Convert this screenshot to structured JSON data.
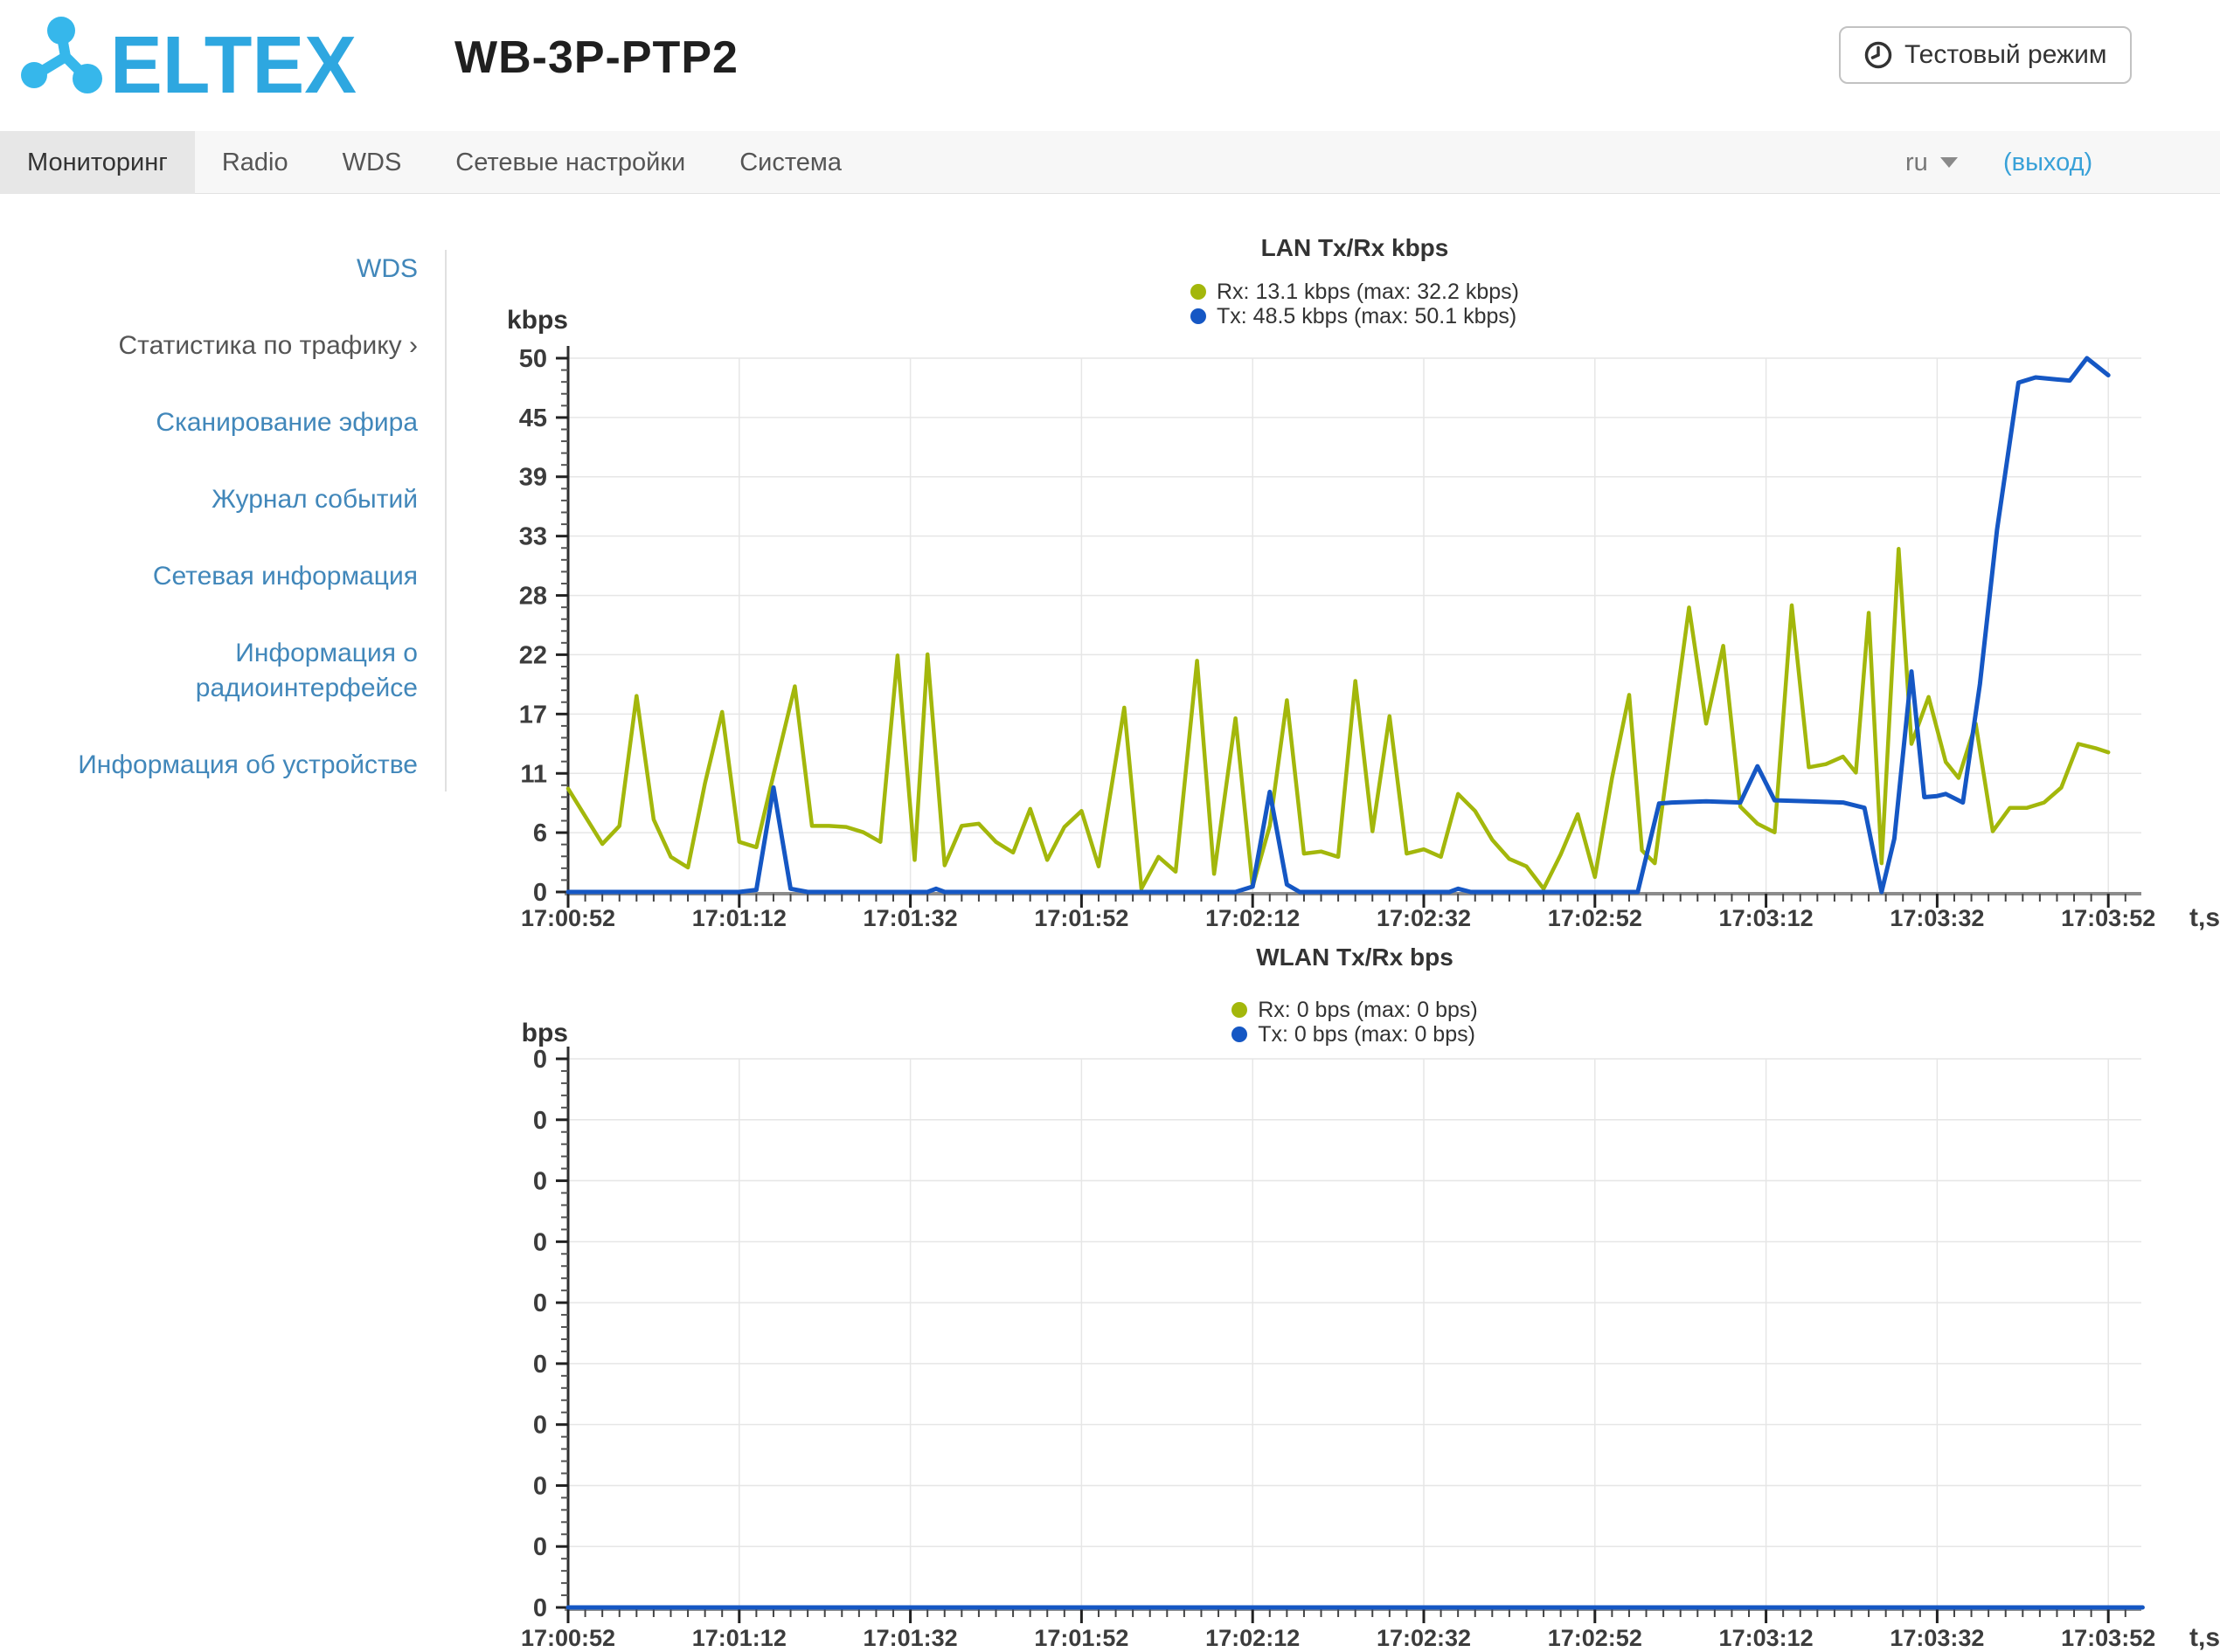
{
  "header": {
    "logo_text": "ELTEX",
    "title": "WB-3P-PTP2",
    "test_mode_label": "Тестовый режим"
  },
  "navbar": {
    "tabs": [
      {
        "label": "Мониторинг",
        "active": true
      },
      {
        "label": "Radio",
        "active": false
      },
      {
        "label": "WDS",
        "active": false
      },
      {
        "label": "Сетевые настройки",
        "active": false
      },
      {
        "label": "Система",
        "active": false
      }
    ],
    "language": "ru",
    "logout_label": "(выход)"
  },
  "sidebar": {
    "items": [
      {
        "label": "WDS",
        "active": false
      },
      {
        "label": "Статистика по трафику",
        "active": true,
        "chevron": "›"
      },
      {
        "label": "Сканирование эфира",
        "active": false
      },
      {
        "label": "Журнал событий",
        "active": false
      },
      {
        "label": "Сетевая информация",
        "active": false
      },
      {
        "label": "Информация о радиоинтерфейсе",
        "active": false
      },
      {
        "label": "Информация об устройстве",
        "active": false
      }
    ]
  },
  "colors": {
    "brand_blue": "#31b0e6",
    "link_blue": "#4187ba",
    "logout_blue": "#38a1d8",
    "rx_green": "#a3b70b",
    "tx_blue": "#1557c4",
    "grid": "#e6e6e6"
  },
  "chart_data": [
    {
      "type": "line",
      "title": "LAN Tx/Rx kbps",
      "ylabel": "kbps",
      "xlabel": "t,s",
      "x_tick_labels": [
        "17:00:52",
        "17:01:12",
        "17:01:32",
        "17:01:52",
        "17:02:12",
        "17:02:32",
        "17:02:52",
        "17:03:12",
        "17:03:32",
        "17:03:52"
      ],
      "x_tick_seconds": [
        0,
        20,
        40,
        60,
        80,
        100,
        120,
        140,
        160,
        180
      ],
      "x_minor_step_seconds": 2,
      "y_max": 50.1,
      "y_ticks": [
        {
          "v": 0,
          "label": "0"
        },
        {
          "v": 5.57,
          "label": "6"
        },
        {
          "v": 11.13,
          "label": "11"
        },
        {
          "v": 16.7,
          "label": "17"
        },
        {
          "v": 22.27,
          "label": "22"
        },
        {
          "v": 27.83,
          "label": "28"
        },
        {
          "v": 33.4,
          "label": "33"
        },
        {
          "v": 38.97,
          "label": "39"
        },
        {
          "v": 44.53,
          "label": "45"
        },
        {
          "v": 50.1,
          "label": "50"
        }
      ],
      "grid": true,
      "legend_position": "top-center",
      "legend": [
        {
          "series": "Rx",
          "label": "Rx: 13.1 kbps (max: 32.2 kbps)",
          "color": "#a3b70b"
        },
        {
          "series": "Tx",
          "label": "Tx: 48.5 kbps (max: 50.1 kbps)",
          "color": "#1557c4"
        }
      ],
      "series": [
        {
          "name": "Rx",
          "color": "#a3b70b",
          "points": [
            [
              0,
              9.7
            ],
            [
              2,
              7.1
            ],
            [
              4,
              4.5
            ],
            [
              6,
              6.2
            ],
            [
              8,
              18.4
            ],
            [
              10,
              6.8
            ],
            [
              12,
              3.3
            ],
            [
              14,
              2.3
            ],
            [
              16,
              10.2
            ],
            [
              18,
              16.9
            ],
            [
              20,
              4.7
            ],
            [
              22,
              4.2
            ],
            [
              24,
              11.0
            ],
            [
              26.5,
              19.3
            ],
            [
              28.5,
              6.2
            ],
            [
              30.5,
              6.2
            ],
            [
              32.5,
              6.1
            ],
            [
              34.5,
              5.6
            ],
            [
              36.5,
              4.7
            ],
            [
              38.5,
              22.2
            ],
            [
              40.5,
              3.0
            ],
            [
              42,
              22.3
            ],
            [
              44,
              2.5
            ],
            [
              46,
              6.2
            ],
            [
              48,
              6.4
            ],
            [
              50,
              4.7
            ],
            [
              52,
              3.7
            ],
            [
              54,
              7.8
            ],
            [
              56,
              3.0
            ],
            [
              58,
              6.1
            ],
            [
              60,
              7.6
            ],
            [
              62,
              2.4
            ],
            [
              65,
              17.3
            ],
            [
              67,
              0.3
            ],
            [
              69,
              3.3
            ],
            [
              71,
              1.9
            ],
            [
              73.5,
              21.7
            ],
            [
              75.5,
              1.7
            ],
            [
              78,
              16.3
            ],
            [
              80,
              0.5
            ],
            [
              82,
              6.2
            ],
            [
              84,
              18.0
            ],
            [
              86,
              3.6
            ],
            [
              88,
              3.8
            ],
            [
              90,
              3.3
            ],
            [
              92,
              19.8
            ],
            [
              94,
              5.7
            ],
            [
              96,
              16.5
            ],
            [
              98,
              3.6
            ],
            [
              100,
              4.0
            ],
            [
              102,
              3.3
            ],
            [
              104,
              9.2
            ],
            [
              106,
              7.6
            ],
            [
              108,
              4.9
            ],
            [
              110,
              3.1
            ],
            [
              112,
              2.4
            ],
            [
              114,
              0.3
            ],
            [
              116,
              3.5
            ],
            [
              118,
              7.3
            ],
            [
              120,
              1.4
            ],
            [
              122,
              10.7
            ],
            [
              124,
              18.5
            ],
            [
              125.5,
              3.9
            ],
            [
              127,
              2.7
            ],
            [
              129,
              14.8
            ],
            [
              131,
              26.7
            ],
            [
              133,
              15.8
            ],
            [
              135,
              23.1
            ],
            [
              137,
              8.0
            ],
            [
              139,
              6.4
            ],
            [
              141,
              5.6
            ],
            [
              143,
              26.9
            ],
            [
              145,
              11.7
            ],
            [
              147,
              12.0
            ],
            [
              149,
              12.7
            ],
            [
              150.5,
              11.2
            ],
            [
              152,
              26.2
            ],
            [
              153.5,
              2.7
            ],
            [
              155.5,
              32.2
            ],
            [
              157,
              13.9
            ],
            [
              159,
              18.3
            ],
            [
              161,
              12.2
            ],
            [
              162.5,
              10.7
            ],
            [
              164.5,
              15.8
            ],
            [
              166.5,
              5.7
            ],
            [
              168.5,
              7.9
            ],
            [
              170.5,
              7.9
            ],
            [
              172.5,
              8.4
            ],
            [
              174.5,
              9.8
            ],
            [
              176.5,
              13.9
            ],
            [
              178.5,
              13.5
            ],
            [
              180,
              13.1
            ]
          ]
        },
        {
          "name": "Tx",
          "color": "#1557c4",
          "points": [
            [
              0,
              0
            ],
            [
              20,
              0
            ],
            [
              22,
              0.2
            ],
            [
              24,
              9.8
            ],
            [
              26,
              0.3
            ],
            [
              28,
              0
            ],
            [
              42,
              0
            ],
            [
              43,
              0.3
            ],
            [
              44,
              0
            ],
            [
              78,
              0
            ],
            [
              80,
              0.5
            ],
            [
              82,
              9.4
            ],
            [
              84,
              0.7
            ],
            [
              85.5,
              0
            ],
            [
              103,
              0
            ],
            [
              104,
              0.3
            ],
            [
              105.5,
              0
            ],
            [
              125,
              0
            ],
            [
              127.5,
              8.3
            ],
            [
              129,
              8.4
            ],
            [
              133,
              8.5
            ],
            [
              137,
              8.4
            ],
            [
              139,
              11.8
            ],
            [
              141,
              8.6
            ],
            [
              145,
              8.5
            ],
            [
              149,
              8.4
            ],
            [
              151.5,
              7.9
            ],
            [
              153.5,
              0
            ],
            [
              155,
              5.0
            ],
            [
              157,
              20.7
            ],
            [
              158.5,
              8.9
            ],
            [
              160,
              9.0
            ],
            [
              161,
              9.2
            ],
            [
              163,
              8.4
            ],
            [
              165,
              19.5
            ],
            [
              167,
              34.0
            ],
            [
              169.5,
              47.8
            ],
            [
              171.5,
              48.3
            ],
            [
              174,
              48.1
            ],
            [
              175.5,
              48.0
            ],
            [
              177.5,
              50.1
            ],
            [
              180,
              48.5
            ]
          ]
        }
      ]
    },
    {
      "type": "line",
      "title": "WLAN Tx/Rx bps",
      "ylabel": "bps",
      "xlabel": "t,s",
      "x_tick_labels": [
        "17:00:52",
        "17:01:12",
        "17:01:32",
        "17:01:52",
        "17:02:12",
        "17:02:32",
        "17:02:52",
        "17:03:12",
        "17:03:32",
        "17:03:52"
      ],
      "x_tick_seconds": [
        0,
        20,
        40,
        60,
        80,
        100,
        120,
        140,
        160,
        180
      ],
      "x_minor_step_seconds": 2,
      "y_max": 9,
      "y_ticks": [
        {
          "v": 0,
          "label": "0"
        },
        {
          "v": 1,
          "label": "0"
        },
        {
          "v": 2,
          "label": "0"
        },
        {
          "v": 3,
          "label": "0"
        },
        {
          "v": 4,
          "label": "0"
        },
        {
          "v": 5,
          "label": "0"
        },
        {
          "v": 6,
          "label": "0"
        },
        {
          "v": 7,
          "label": "0"
        },
        {
          "v": 8,
          "label": "0"
        },
        {
          "v": 9,
          "label": "0"
        }
      ],
      "grid": true,
      "legend_position": "top-center",
      "legend": [
        {
          "series": "Rx",
          "label": "Rx: 0 bps (max: 0 bps)",
          "color": "#a3b70b"
        },
        {
          "series": "Tx",
          "label": "Tx: 0 bps (max: 0 bps)",
          "color": "#1557c4"
        }
      ],
      "series": [
        {
          "name": "Rx",
          "color": "#a3b70b",
          "points": [
            [
              0,
              0
            ],
            [
              184,
              0
            ]
          ]
        },
        {
          "name": "Tx",
          "color": "#1557c4",
          "points": [
            [
              0,
              0
            ],
            [
              184,
              0
            ]
          ]
        }
      ]
    }
  ]
}
